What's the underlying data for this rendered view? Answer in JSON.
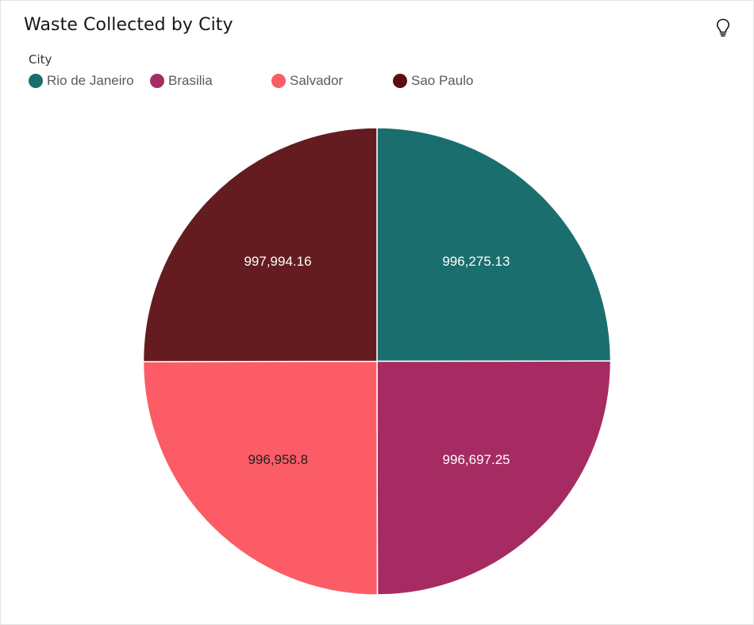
{
  "card": {
    "title": "Waste Collected by City"
  },
  "icons": {
    "insight": "lightbulb-icon"
  },
  "legend": {
    "title": "City",
    "items": [
      {
        "label": "Rio de Janeiro",
        "color": "#1a6e6e"
      },
      {
        "label": "Brasilia",
        "color": "#a62b62"
      },
      {
        "label": "Salvador",
        "color": "#fc5c65"
      },
      {
        "label": "Sao Paulo",
        "color": "#5c0e12"
      }
    ]
  },
  "chart_data": {
    "type": "pie",
    "title": "Waste Collected by City",
    "legend_title": "City",
    "legend_position": "top-left",
    "slices": [
      {
        "label": "Rio de Janeiro",
        "value": 996275.13,
        "display": "996,275.13",
        "color": "#1a6e6e",
        "label_color": "#ffffff"
      },
      {
        "label": "Brasilia",
        "value": 996697.25,
        "display": "996,697.25",
        "color": "#a62b62",
        "label_color": "#ffffff"
      },
      {
        "label": "Salvador",
        "value": 996958.8,
        "display": "996,958.8",
        "color": "#fc5c65",
        "label_color": "#222222"
      },
      {
        "label": "Sao Paulo",
        "value": 997994.16,
        "display": "997,994.16",
        "color": "#641c20",
        "label_color": "#ffffff"
      }
    ]
  }
}
